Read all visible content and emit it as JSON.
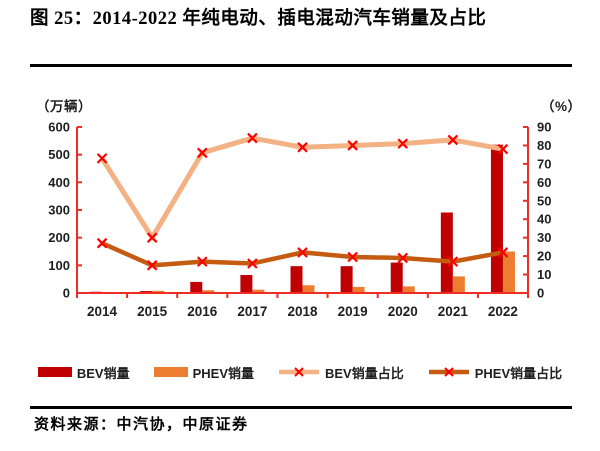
{
  "page": {
    "title": "图 25：2014-2022 年纯电动、插电混动汽车销量及占比",
    "source": "资料来源：中汽协，中原证券"
  },
  "chart_data": {
    "type": "bar",
    "subtype": "combo-bar-line-dual-axis",
    "categories": [
      "2014",
      "2015",
      "2016",
      "2017",
      "2018",
      "2019",
      "2020",
      "2021",
      "2022"
    ],
    "left_axis": {
      "unit_label": "（万辆）",
      "min": 0,
      "max": 600,
      "step": 100,
      "ticks": [
        0,
        100,
        200,
        300,
        400,
        500,
        600
      ]
    },
    "right_axis": {
      "unit_label": "（%）",
      "min": 0,
      "max": 90,
      "step": 10,
      "ticks": [
        0,
        10,
        20,
        30,
        40,
        50,
        60,
        70,
        80,
        90
      ]
    },
    "series": [
      {
        "name": "BEV销量",
        "type": "bar",
        "axis": "left",
        "color": "#c00000",
        "values": [
          4.5,
          7,
          40,
          65,
          97,
          97,
          110,
          291,
          536
        ]
      },
      {
        "name": "PHEV销量",
        "type": "bar",
        "axis": "left",
        "color": "#ed7d31",
        "values": [
          3,
          8,
          10,
          12,
          28,
          22,
          24,
          60,
          150
        ]
      },
      {
        "name": "BEV销量占比",
        "type": "line",
        "axis": "right",
        "color": "#f4b183",
        "values": [
          73,
          30,
          76,
          84,
          79,
          80,
          81,
          83,
          78
        ]
      },
      {
        "name": "PHEV销量占比",
        "type": "line",
        "axis": "right",
        "color": "#c55a11",
        "values": [
          27,
          15,
          17,
          16,
          22,
          19.5,
          19,
          17,
          22
        ]
      }
    ],
    "marker": {
      "shape": "x-cross",
      "color": "#ff0000"
    },
    "axis_color": "#ee2e24",
    "tick_label_color": "#1f1f1f",
    "grid": false,
    "legend_position": "bottom"
  }
}
